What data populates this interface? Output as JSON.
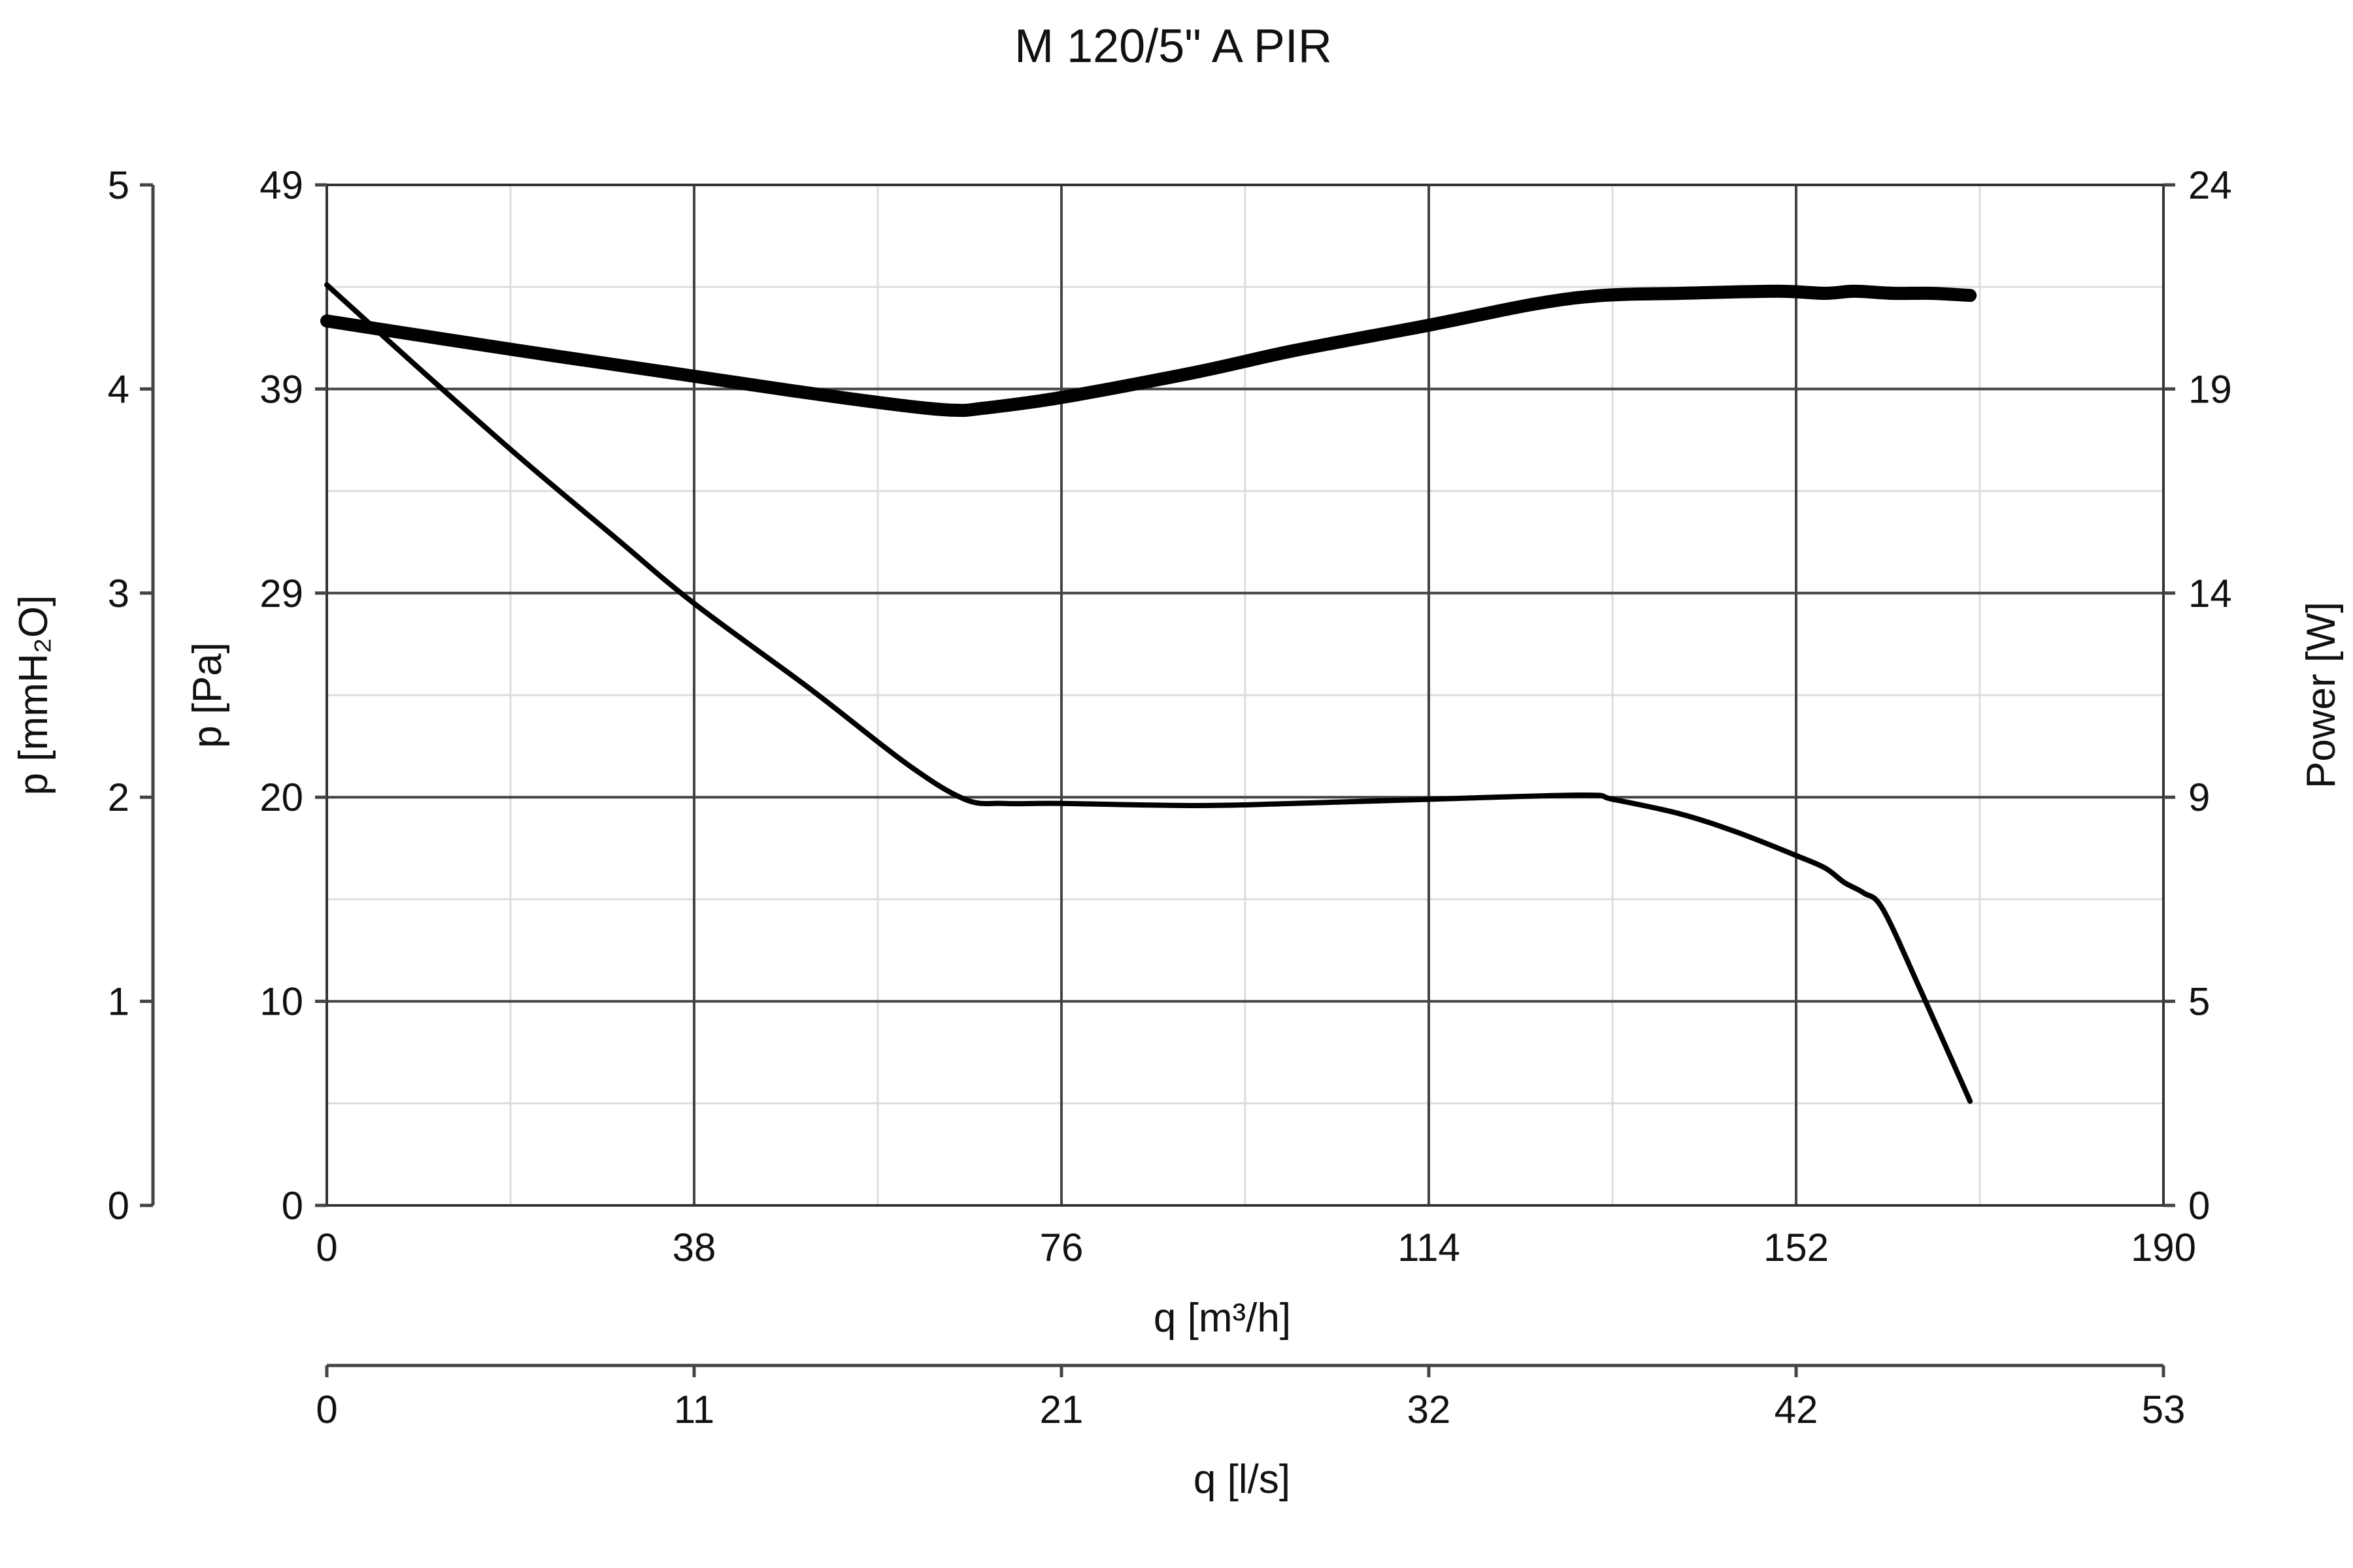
{
  "chart_data": {
    "type": "line",
    "title": "M 120/5\" A PIR",
    "x_axis": {
      "label": "q [m³/h]",
      "range": [
        0,
        190
      ],
      "ticks": [
        "0",
        "38",
        "76",
        "114",
        "152",
        "190"
      ]
    },
    "x2_axis": {
      "label": "q [l/s]",
      "range": [
        0,
        53
      ],
      "ticks": [
        "0",
        "11",
        "21",
        "32",
        "42",
        "53"
      ]
    },
    "y_axis_pa": {
      "label": "p [Pa]",
      "range": [
        0,
        49
      ],
      "ticks": [
        "0",
        "10",
        "20",
        "29",
        "39",
        "49"
      ]
    },
    "y_axis_mmh2o": {
      "label": "p [mmH₂O]",
      "range": [
        0,
        5
      ],
      "ticks": [
        "0",
        "1",
        "2",
        "3",
        "4",
        "5"
      ]
    },
    "y_axis_power": {
      "label": "Power [W]",
      "range": [
        0,
        24
      ],
      "ticks": [
        "0",
        "5",
        "9",
        "14",
        "19",
        "24"
      ]
    },
    "grid": true,
    "series": [
      {
        "axis": "pressure_pa",
        "x": [
          0,
          10,
          20,
          30,
          38,
          50,
          60,
          66,
          70,
          76,
          90,
          100,
          114,
          130,
          133,
          140,
          146,
          152,
          155,
          157,
          159,
          161,
          165,
          170
        ],
        "y": [
          44.2,
          40.0,
          35.9,
          32.0,
          28.9,
          24.8,
          21.2,
          19.5,
          19.3,
          19.3,
          19.2,
          19.3,
          19.5,
          19.7,
          19.5,
          18.8,
          17.9,
          16.8,
          16.2,
          15.5,
          15.0,
          14.2,
          10.2,
          5.0
        ]
      },
      {
        "axis": "power_w",
        "x": [
          0,
          20,
          38,
          50,
          60,
          65,
          68,
          76,
          90,
          100,
          114,
          125,
          132,
          140,
          150,
          155,
          158,
          162,
          166,
          170
        ],
        "y": [
          20.8,
          20.1,
          19.5,
          19.1,
          18.8,
          18.7,
          18.75,
          19.0,
          19.6,
          20.1,
          20.7,
          21.2,
          21.4,
          21.45,
          21.5,
          21.45,
          21.5,
          21.45,
          21.45,
          21.4
        ]
      }
    ]
  }
}
